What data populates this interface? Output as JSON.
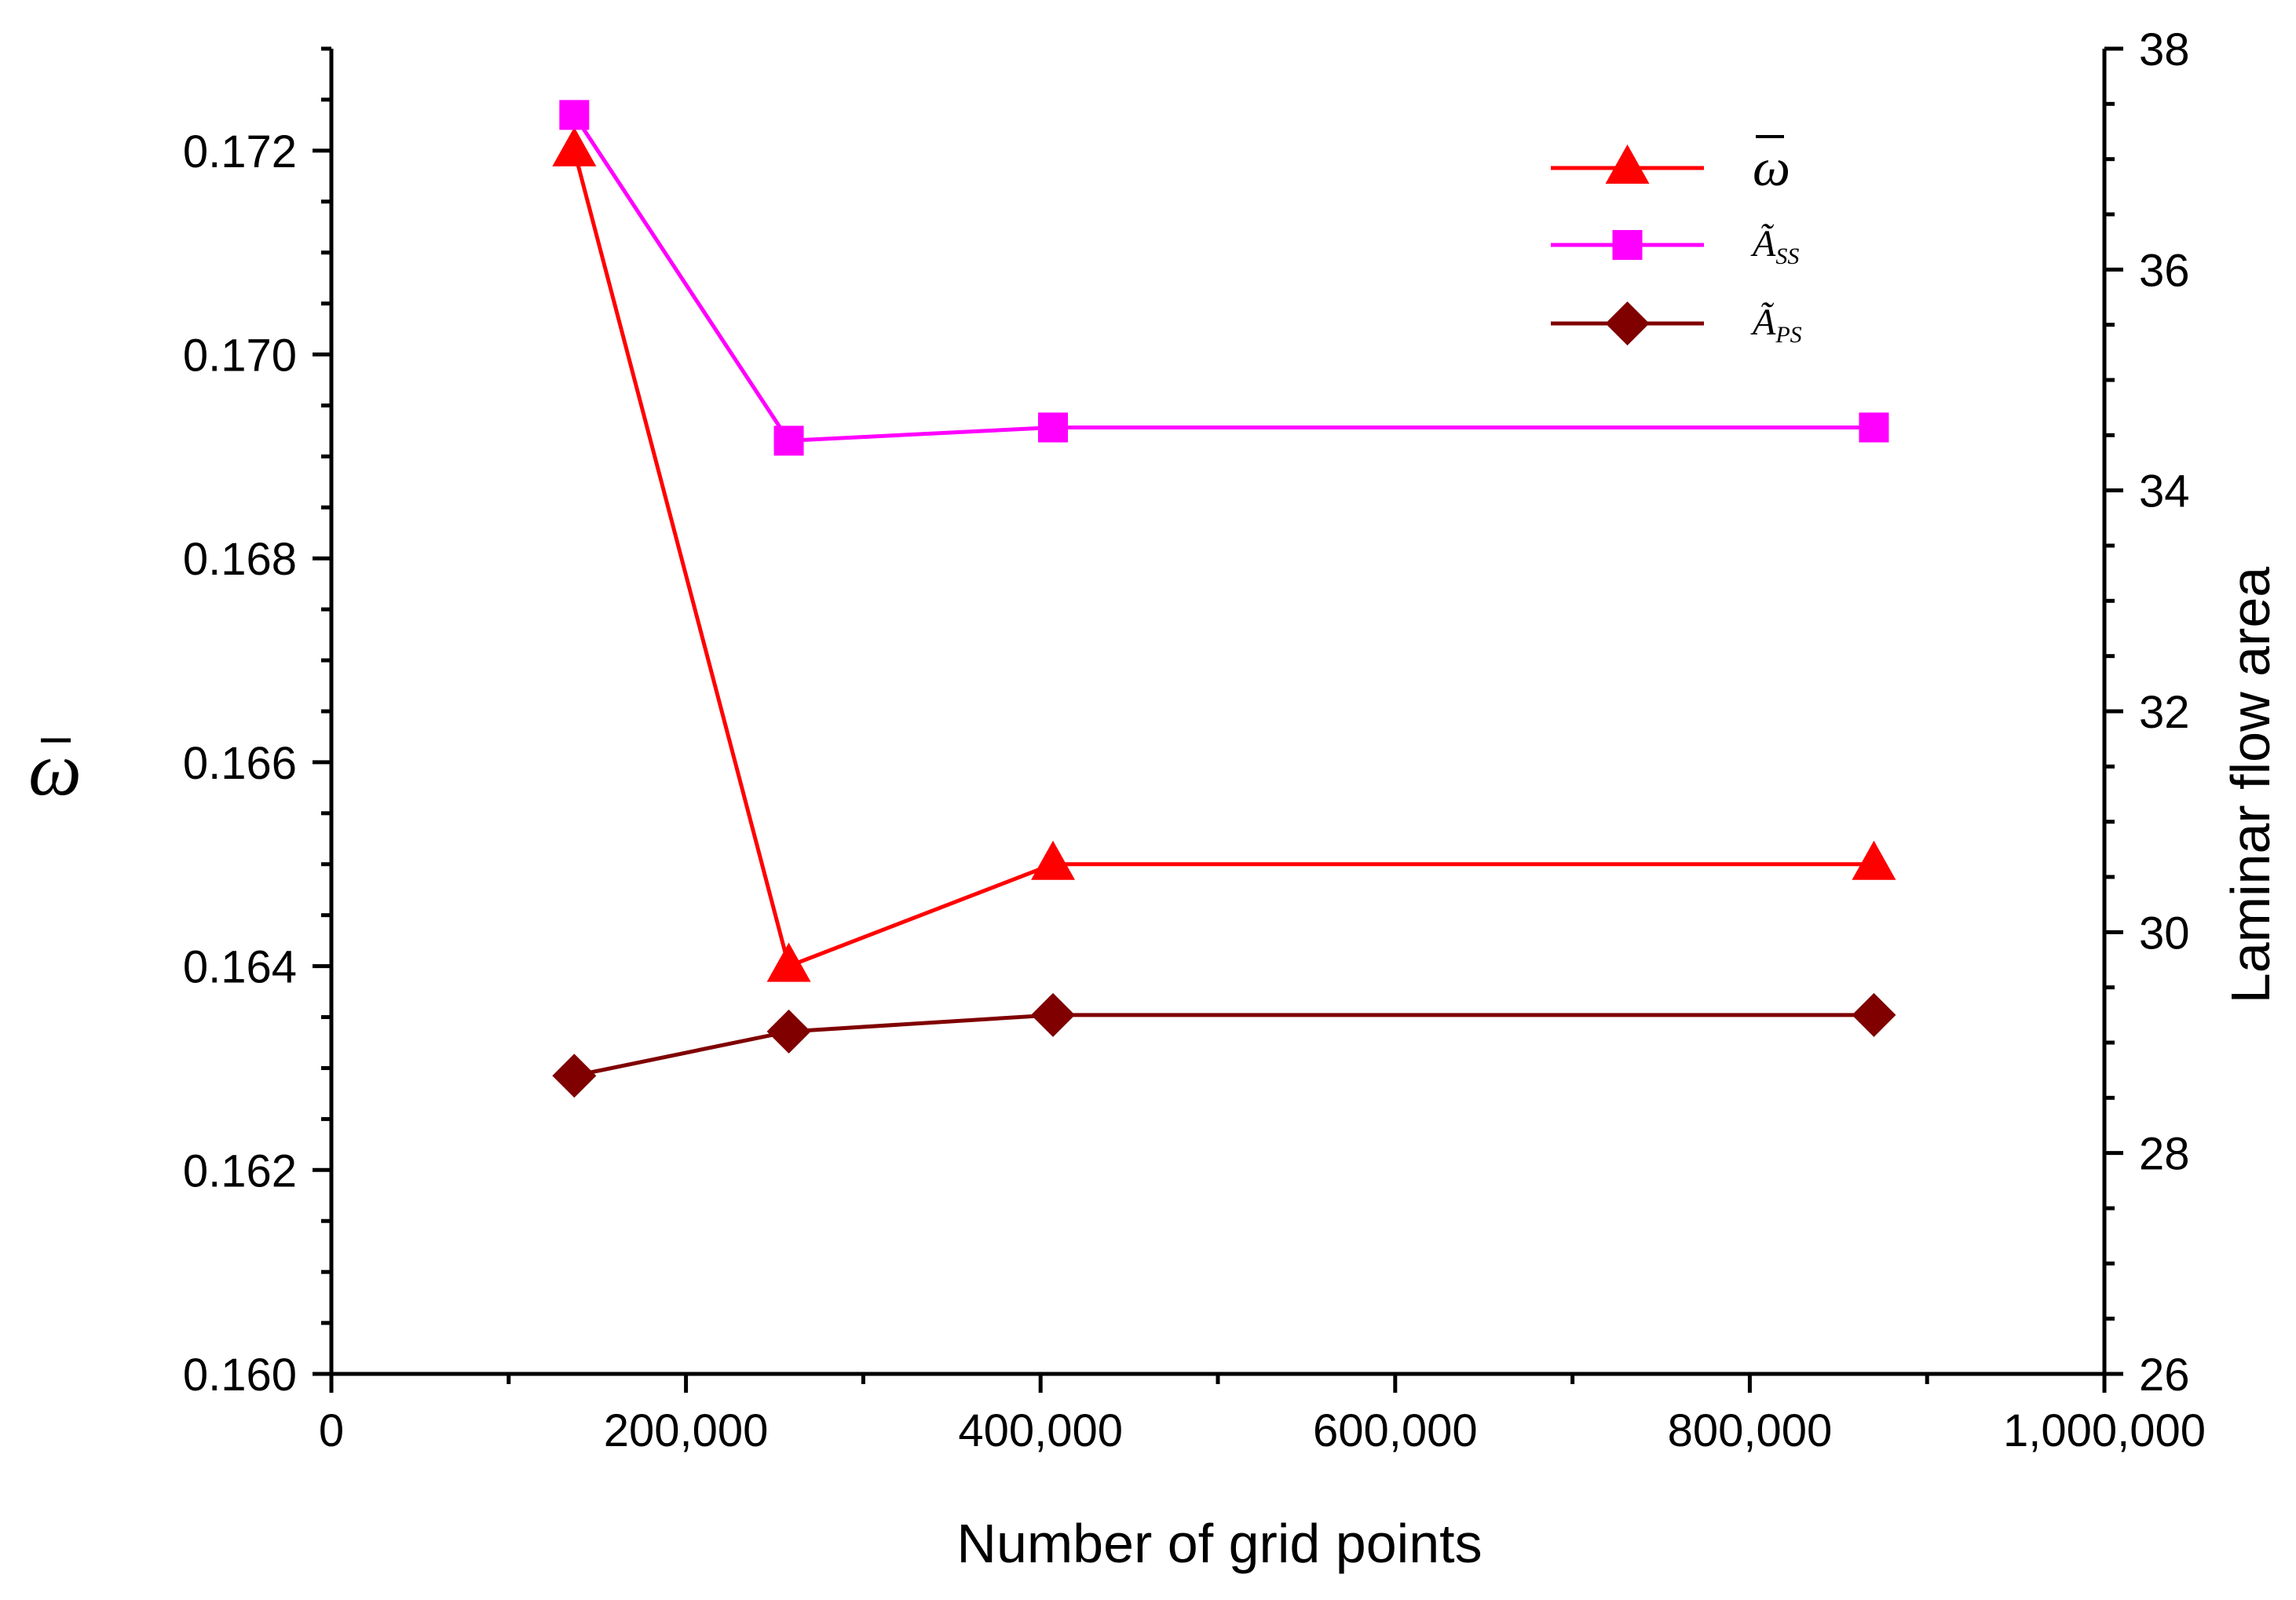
{
  "chart_data": {
    "type": "line",
    "title": "",
    "xlabel": "Number of grid points",
    "ylabel_left": "ω̄",
    "ylabel_right": "Laminar flow area",
    "x": [
      137000,
      258000,
      407000,
      870000
    ],
    "x_axis": {
      "range": [
        0,
        1000000
      ],
      "major_ticks": [
        0,
        200000,
        400000,
        600000,
        800000,
        1000000
      ],
      "tick_labels": [
        "0",
        "200,000",
        "400,000",
        "600,000",
        "800,000",
        "1,000,000"
      ],
      "minor_step": 100000
    },
    "y_left_axis": {
      "range": [
        0.16,
        0.173
      ],
      "major_ticks": [
        0.16,
        0.162,
        0.164,
        0.166,
        0.168,
        0.17,
        0.172
      ],
      "tick_labels": [
        "0.160",
        "0.162",
        "0.164",
        "0.166",
        "0.168",
        "0.170",
        "0.172"
      ],
      "minor_step": 0.0005
    },
    "y_right_axis": {
      "range": [
        26,
        38
      ],
      "major_ticks": [
        26,
        28,
        30,
        32,
        34,
        36,
        38
      ],
      "tick_labels": [
        "26",
        "28",
        "30",
        "32",
        "34",
        "36",
        "38"
      ],
      "minor_step": 0.5
    },
    "series": [
      {
        "name": "ω̄",
        "legend_main": "ω",
        "legend_sub": "",
        "axis": "left",
        "marker": "triangle",
        "color": "#ff0000",
        "values": [
          0.172,
          0.164,
          0.165,
          0.165
        ]
      },
      {
        "name": "Ã_SS",
        "legend_main": "Ã",
        "legend_sub": "SS",
        "axis": "right",
        "marker": "square",
        "color": "#ff00ff",
        "values": [
          37.4,
          34.45,
          34.57,
          34.57
        ]
      },
      {
        "name": "Ã_PS",
        "legend_main": "Ã",
        "legend_sub": "PS",
        "axis": "right",
        "marker": "diamond",
        "color": "#800000",
        "values": [
          28.7,
          29.1,
          29.25,
          29.25
        ]
      }
    ],
    "legend_position": "top-right",
    "grid": false
  }
}
